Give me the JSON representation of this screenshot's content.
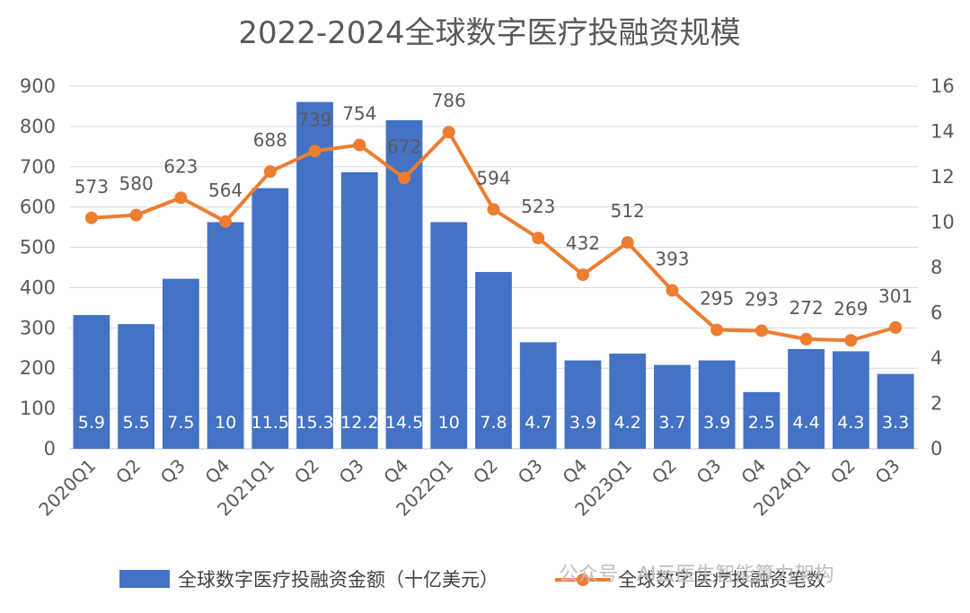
{
  "chart_data": {
    "type": "bar",
    "title": "2022-2024全球数字医疗投融资规模",
    "categories": [
      "2020Q1",
      "Q2",
      "Q3",
      "Q4",
      "2021Q1",
      "Q2",
      "Q3",
      "Q4",
      "2022Q1",
      "Q2",
      "Q3",
      "Q4",
      "2023Q1",
      "Q2",
      "Q3",
      "Q4",
      "2024Q1",
      "Q2",
      "Q3"
    ],
    "y_left": {
      "min": 0,
      "max": 900,
      "step": 100,
      "ticks": [
        "0",
        "100",
        "200",
        "300",
        "400",
        "500",
        "600",
        "700",
        "800",
        "900"
      ]
    },
    "y_right": {
      "min": 0,
      "max": 16,
      "step": 2,
      "ticks": [
        "0",
        "2",
        "4",
        "6",
        "8",
        "10",
        "12",
        "14",
        "16"
      ]
    },
    "grid": true,
    "legend_position": "bottom",
    "series": [
      {
        "name": "全球数字医疗投融资金额（十亿美元）",
        "type": "bar",
        "axis": "right",
        "color": "#4472C4",
        "values": [
          5.9,
          5.5,
          7.5,
          10,
          11.5,
          15.3,
          12.2,
          14.5,
          10,
          7.8,
          4.7,
          3.9,
          4.2,
          3.7,
          3.9,
          2.5,
          4.4,
          4.3,
          3.3
        ],
        "labels": [
          "5.9",
          "5.5",
          "7.5",
          "10",
          "11.5",
          "15.3",
          "12.2",
          "14.5",
          "10",
          "7.8",
          "4.7",
          "3.9",
          "4.2",
          "3.7",
          "3.9",
          "2.5",
          "4.4",
          "4.3",
          "3.3"
        ]
      },
      {
        "name": "全球数字医疗投融资笔数",
        "type": "line",
        "axis": "left",
        "color": "#ED7D31",
        "values": [
          573,
          580,
          623,
          564,
          688,
          739,
          754,
          672,
          786,
          594,
          523,
          432,
          512,
          393,
          295,
          293,
          272,
          269,
          301
        ],
        "labels": [
          "573",
          "580",
          "623",
          "564",
          "688",
          "739",
          "754",
          "672",
          "786",
          "594",
          "523",
          "432",
          "512",
          "393",
          "295",
          "293",
          "272",
          "269",
          "301"
        ]
      }
    ]
  },
  "watermark": "公众号 · AI云医生智能算力架构"
}
